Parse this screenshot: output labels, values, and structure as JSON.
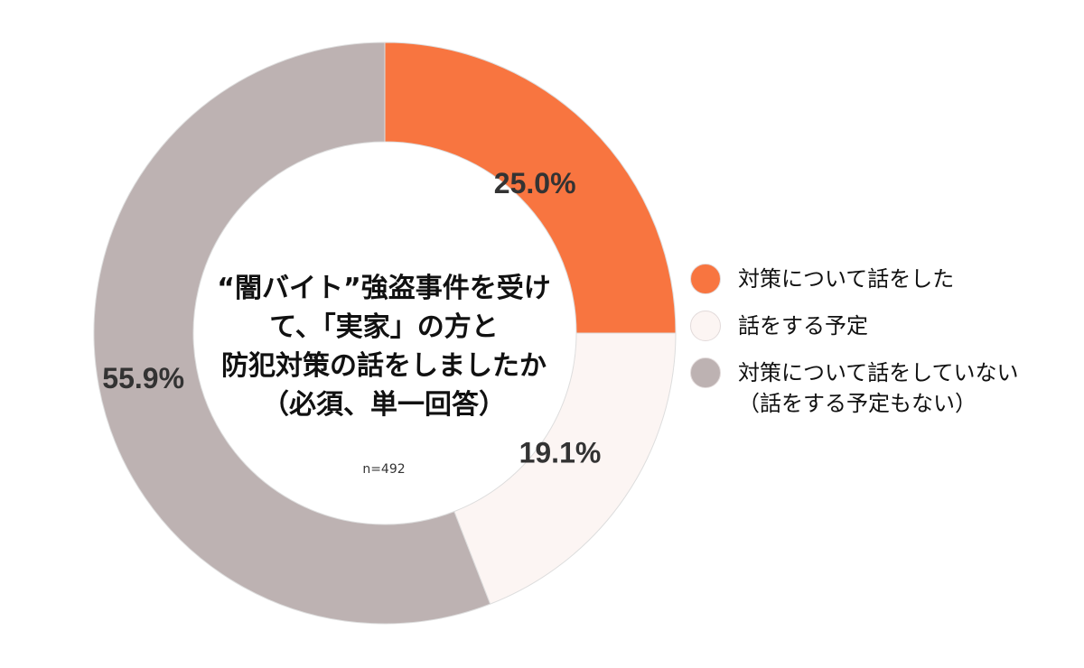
{
  "chart_data": {
    "type": "pie",
    "title_lines": [
      "“闇バイト”強盗事件を受け",
      "て、「実家」の方と",
      "防犯対策の話をしましたか",
      "（必須、単一回答）"
    ],
    "note": "n=492",
    "donut": true,
    "categories": [
      "対策について話をした",
      "話をする予定",
      "対策について話をしていない（話をする予定もない）"
    ],
    "legend": [
      {
        "lines": [
          "対策について話をした"
        ]
      },
      {
        "lines": [
          "話をする予定"
        ]
      },
      {
        "lines": [
          "対策について話をしていない",
          "（話をする予定もない）"
        ]
      }
    ],
    "values": [
      25.0,
      19.1,
      55.9
    ],
    "data_labels": [
      "25.0%",
      "19.1%",
      "55.9%"
    ],
    "colors": [
      "#F87540",
      "#FCF5F3",
      "#BDB2B2"
    ],
    "legend_position": "right"
  }
}
